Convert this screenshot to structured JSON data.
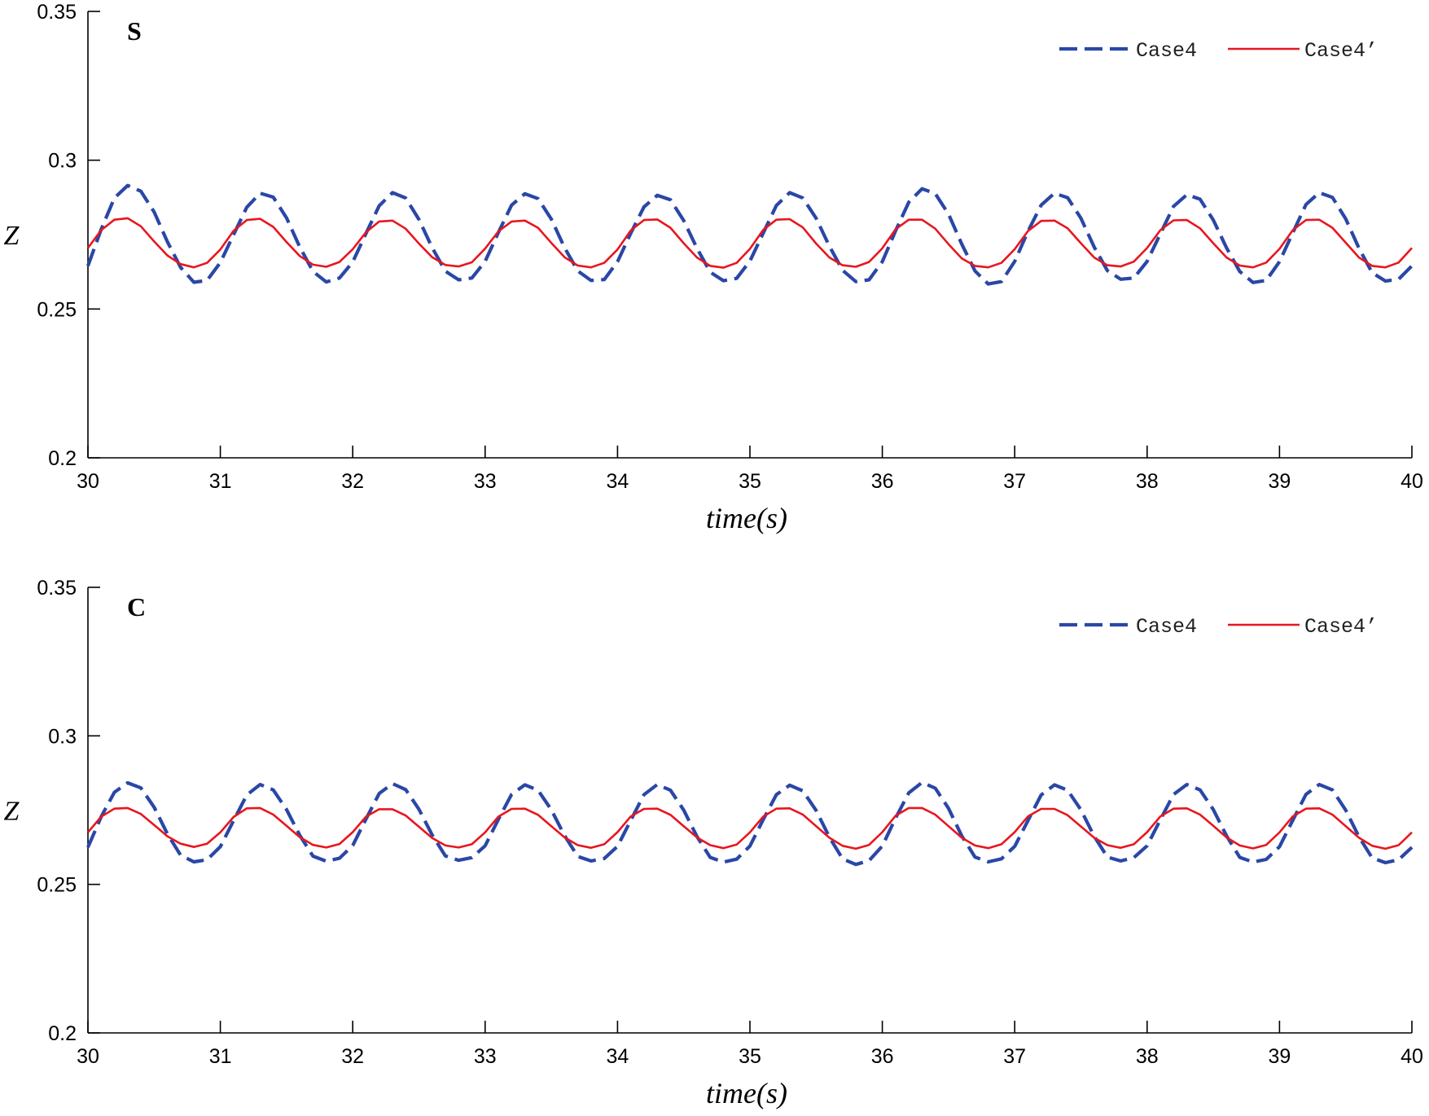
{
  "chart_data": [
    {
      "type": "line",
      "title": "S",
      "xlabel": "time(s)",
      "ylabel": "Z",
      "xlim": [
        30,
        40
      ],
      "ylim": [
        0.2,
        0.35
      ],
      "xticks": [
        30,
        31,
        32,
        33,
        34,
        35,
        36,
        37,
        38,
        39,
        40
      ],
      "yticks": [
        0.2,
        0.25,
        0.3,
        0.35
      ],
      "xtick_labels": [
        "30",
        "31",
        "32",
        "33",
        "34",
        "35",
        "36",
        "37",
        "38",
        "39",
        "40"
      ],
      "ytick_labels": [
        "0.2",
        "0.25",
        "0.3",
        "0.35"
      ],
      "grid": false,
      "legend_position": "top-right",
      "series": [
        {
          "name": "Case4",
          "color": "#2a47a6",
          "style": "dashed",
          "x": [
            30.0,
            30.1,
            30.2,
            30.3,
            30.4,
            30.5,
            30.6,
            30.7,
            30.8,
            30.9,
            31.0,
            31.1,
            31.2,
            31.3,
            31.4,
            31.5,
            31.6,
            31.7,
            31.8,
            31.9,
            32.0,
            32.1,
            32.2,
            32.3,
            32.4,
            32.5,
            32.6,
            32.7,
            32.8,
            32.9,
            33.0,
            33.1,
            33.2,
            33.3,
            33.4,
            33.5,
            33.6,
            33.7,
            33.8,
            33.9,
            34.0,
            34.1,
            34.2,
            34.3,
            34.4,
            34.5,
            34.6,
            34.7,
            34.8,
            34.9,
            35.0,
            35.1,
            35.2,
            35.3,
            35.4,
            35.5,
            35.6,
            35.7,
            35.8,
            35.9,
            36.0,
            36.1,
            36.2,
            36.3,
            36.4,
            36.5,
            36.6,
            36.7,
            36.8,
            36.9,
            37.0,
            37.1,
            37.2,
            37.3,
            37.4,
            37.5,
            37.6,
            37.7,
            37.8,
            37.9,
            38.0,
            38.1,
            38.2,
            38.3,
            38.4,
            38.5,
            38.6,
            38.7,
            38.8,
            38.9,
            39.0,
            39.1,
            39.2,
            39.3,
            39.4,
            39.5,
            39.6,
            39.7,
            39.8,
            39.9,
            40.0
          ],
          "y": [
            0.2645,
            0.2768,
            0.2873,
            0.2915,
            0.2896,
            0.2826,
            0.2726,
            0.264,
            0.259,
            0.2596,
            0.2656,
            0.275,
            0.2842,
            0.2889,
            0.2876,
            0.2806,
            0.2708,
            0.2626,
            0.2591,
            0.2604,
            0.2658,
            0.2754,
            0.2847,
            0.2891,
            0.2873,
            0.2801,
            0.2706,
            0.2627,
            0.2598,
            0.2604,
            0.266,
            0.2757,
            0.2849,
            0.2887,
            0.2871,
            0.2802,
            0.2706,
            0.2628,
            0.2596,
            0.2599,
            0.2659,
            0.2755,
            0.2843,
            0.2882,
            0.2867,
            0.2797,
            0.2704,
            0.2624,
            0.2595,
            0.2603,
            0.2661,
            0.2755,
            0.2848,
            0.2891,
            0.2873,
            0.2805,
            0.2711,
            0.263,
            0.2592,
            0.2598,
            0.2659,
            0.2763,
            0.2859,
            0.2904,
            0.2888,
            0.2819,
            0.2718,
            0.2628,
            0.2584,
            0.2592,
            0.266,
            0.2761,
            0.2849,
            0.2889,
            0.2874,
            0.2805,
            0.2708,
            0.2629,
            0.26,
            0.2604,
            0.266,
            0.2753,
            0.2845,
            0.2884,
            0.2869,
            0.2799,
            0.2705,
            0.2626,
            0.2589,
            0.2596,
            0.2659,
            0.2756,
            0.2851,
            0.2891,
            0.2875,
            0.2803,
            0.2704,
            0.2622,
            0.2594,
            0.26,
            0.2645
          ]
        },
        {
          "name": "Case4’",
          "color": "#e8161f",
          "style": "solid",
          "x": [
            30.0,
            30.1,
            30.2,
            30.3,
            30.4,
            30.5,
            30.6,
            30.7,
            30.8,
            30.9,
            31.0,
            31.1,
            31.2,
            31.3,
            31.4,
            31.5,
            31.6,
            31.7,
            31.8,
            31.9,
            32.0,
            32.1,
            32.2,
            32.3,
            32.4,
            32.5,
            32.6,
            32.7,
            32.8,
            32.9,
            33.0,
            33.1,
            33.2,
            33.3,
            33.4,
            33.5,
            33.6,
            33.7,
            33.8,
            33.9,
            34.0,
            34.1,
            34.2,
            34.3,
            34.4,
            34.5,
            34.6,
            34.7,
            34.8,
            34.9,
            35.0,
            35.1,
            35.2,
            35.3,
            35.4,
            35.5,
            35.6,
            35.7,
            35.8,
            35.9,
            36.0,
            36.1,
            36.2,
            36.3,
            36.4,
            36.5,
            36.6,
            36.7,
            36.8,
            36.9,
            37.0,
            37.1,
            37.2,
            37.3,
            37.4,
            37.5,
            37.6,
            37.7,
            37.8,
            37.9,
            38.0,
            38.1,
            38.2,
            38.3,
            38.4,
            38.5,
            38.6,
            38.7,
            38.8,
            38.9,
            39.0,
            39.1,
            39.2,
            39.3,
            39.4,
            39.5,
            39.6,
            39.7,
            39.8,
            39.9,
            40.0
          ],
          "y": [
            0.2705,
            0.2765,
            0.28,
            0.2805,
            0.2778,
            0.2727,
            0.268,
            0.2651,
            0.264,
            0.2655,
            0.27,
            0.2763,
            0.2799,
            0.2803,
            0.2776,
            0.2725,
            0.2678,
            0.2649,
            0.2642,
            0.2658,
            0.2701,
            0.2758,
            0.2794,
            0.2797,
            0.277,
            0.272,
            0.2674,
            0.2648,
            0.2643,
            0.2657,
            0.2703,
            0.2761,
            0.2794,
            0.2797,
            0.2773,
            0.2722,
            0.2674,
            0.2646,
            0.264,
            0.2655,
            0.27,
            0.2764,
            0.2799,
            0.2801,
            0.2773,
            0.2721,
            0.2673,
            0.2645,
            0.2639,
            0.2655,
            0.2702,
            0.2766,
            0.28,
            0.2802,
            0.2774,
            0.272,
            0.2673,
            0.2647,
            0.2642,
            0.2658,
            0.2704,
            0.2768,
            0.28,
            0.28,
            0.277,
            0.2718,
            0.267,
            0.2645,
            0.264,
            0.2655,
            0.2701,
            0.2762,
            0.2796,
            0.2797,
            0.2771,
            0.2721,
            0.2673,
            0.2647,
            0.2643,
            0.2659,
            0.2705,
            0.2765,
            0.2798,
            0.2799,
            0.2771,
            0.2721,
            0.2673,
            0.2646,
            0.264,
            0.2656,
            0.2702,
            0.2765,
            0.2799,
            0.28,
            0.2773,
            0.2723,
            0.2673,
            0.2645,
            0.264,
            0.2656,
            0.2705
          ]
        }
      ]
    },
    {
      "type": "line",
      "title": "C",
      "xlabel": "time(s)",
      "ylabel": "Z",
      "xlim": [
        30,
        40
      ],
      "ylim": [
        0.2,
        0.35
      ],
      "xticks": [
        30,
        31,
        32,
        33,
        34,
        35,
        36,
        37,
        38,
        39,
        40
      ],
      "yticks": [
        0.2,
        0.25,
        0.3,
        0.35
      ],
      "xtick_labels": [
        "30",
        "31",
        "32",
        "33",
        "34",
        "35",
        "36",
        "37",
        "38",
        "39",
        "40"
      ],
      "ytick_labels": [
        "0.2",
        "0.25",
        "0.3",
        "0.35"
      ],
      "grid": false,
      "legend_position": "top-right",
      "series": [
        {
          "name": "Case4",
          "color": "#2a47a6",
          "style": "dashed",
          "x": [
            30.0,
            30.1,
            30.2,
            30.3,
            30.4,
            30.5,
            30.6,
            30.7,
            30.8,
            30.9,
            31.0,
            31.1,
            31.2,
            31.3,
            31.4,
            31.5,
            31.6,
            31.7,
            31.8,
            31.9,
            32.0,
            32.1,
            32.2,
            32.3,
            32.4,
            32.5,
            32.6,
            32.7,
            32.8,
            32.9,
            33.0,
            33.1,
            33.2,
            33.3,
            33.4,
            33.5,
            33.6,
            33.7,
            33.8,
            33.9,
            34.0,
            34.1,
            34.2,
            34.3,
            34.4,
            34.5,
            34.6,
            34.7,
            34.8,
            34.9,
            35.0,
            35.1,
            35.2,
            35.3,
            35.4,
            35.5,
            35.6,
            35.7,
            35.8,
            35.9,
            36.0,
            36.1,
            36.2,
            36.3,
            36.4,
            36.5,
            36.6,
            36.7,
            36.8,
            36.9,
            37.0,
            37.1,
            37.2,
            37.3,
            37.4,
            37.5,
            37.6,
            37.7,
            37.8,
            37.9,
            38.0,
            38.1,
            38.2,
            38.3,
            38.4,
            38.5,
            38.6,
            38.7,
            38.8,
            38.9,
            39.0,
            39.1,
            39.2,
            39.3,
            39.4,
            39.5,
            39.6,
            39.7,
            39.8,
            39.9,
            40.0
          ],
          "y": [
            0.2625,
            0.2728,
            0.281,
            0.2842,
            0.2825,
            0.276,
            0.267,
            0.2598,
            0.2576,
            0.2583,
            0.2627,
            0.2715,
            0.2801,
            0.2836,
            0.2818,
            0.2752,
            0.2665,
            0.2595,
            0.2578,
            0.2588,
            0.2631,
            0.272,
            0.2806,
            0.2839,
            0.2819,
            0.2753,
            0.2666,
            0.2596,
            0.2581,
            0.259,
            0.263,
            0.2719,
            0.2803,
            0.2835,
            0.2817,
            0.2751,
            0.2664,
            0.2594,
            0.2579,
            0.2587,
            0.2628,
            0.2716,
            0.2802,
            0.2836,
            0.2817,
            0.275,
            0.2661,
            0.2591,
            0.2575,
            0.2585,
            0.2629,
            0.2718,
            0.2802,
            0.2834,
            0.2815,
            0.2749,
            0.2659,
            0.2586,
            0.2567,
            0.258,
            0.2629,
            0.2723,
            0.2808,
            0.2843,
            0.2824,
            0.2756,
            0.2663,
            0.2592,
            0.2576,
            0.2586,
            0.2628,
            0.2715,
            0.2801,
            0.2835,
            0.2817,
            0.2751,
            0.2662,
            0.2592,
            0.2579,
            0.259,
            0.263,
            0.2718,
            0.2803,
            0.2836,
            0.2818,
            0.2752,
            0.2663,
            0.2591,
            0.2575,
            0.2584,
            0.2627,
            0.2716,
            0.2803,
            0.2836,
            0.2818,
            0.275,
            0.266,
            0.2589,
            0.2573,
            0.2583,
            0.2625
          ]
        },
        {
          "name": "Case4’",
          "color": "#e8161f",
          "style": "solid",
          "x": [
            30.0,
            30.1,
            30.2,
            30.3,
            30.4,
            30.5,
            30.6,
            30.7,
            30.8,
            30.9,
            31.0,
            31.1,
            31.2,
            31.3,
            31.4,
            31.5,
            31.6,
            31.7,
            31.8,
            31.9,
            32.0,
            32.1,
            32.2,
            32.3,
            32.4,
            32.5,
            32.6,
            32.7,
            32.8,
            32.9,
            33.0,
            33.1,
            33.2,
            33.3,
            33.4,
            33.5,
            33.6,
            33.7,
            33.8,
            33.9,
            34.0,
            34.1,
            34.2,
            34.3,
            34.4,
            34.5,
            34.6,
            34.7,
            34.8,
            34.9,
            35.0,
            35.1,
            35.2,
            35.3,
            35.4,
            35.5,
            35.6,
            35.7,
            35.8,
            35.9,
            36.0,
            36.1,
            36.2,
            36.3,
            36.4,
            36.5,
            36.6,
            36.7,
            36.8,
            36.9,
            37.0,
            37.1,
            37.2,
            37.3,
            37.4,
            37.5,
            37.6,
            37.7,
            37.8,
            37.9,
            38.0,
            38.1,
            38.2,
            38.3,
            38.4,
            38.5,
            38.6,
            38.7,
            38.8,
            38.9,
            39.0,
            39.1,
            39.2,
            39.3,
            39.4,
            39.5,
            39.6,
            39.7,
            39.8,
            39.9,
            40.0
          ],
          "y": [
            0.2675,
            0.2728,
            0.2755,
            0.2757,
            0.2737,
            0.27,
            0.2662,
            0.2637,
            0.2626,
            0.2637,
            0.2675,
            0.2727,
            0.2756,
            0.2757,
            0.2735,
            0.2697,
            0.2659,
            0.2633,
            0.2624,
            0.2636,
            0.2676,
            0.2728,
            0.2753,
            0.2753,
            0.2732,
            0.2694,
            0.2656,
            0.2631,
            0.2624,
            0.2635,
            0.2675,
            0.2728,
            0.2754,
            0.2755,
            0.2734,
            0.2696,
            0.2658,
            0.2632,
            0.2623,
            0.2635,
            0.2676,
            0.2729,
            0.2754,
            0.2755,
            0.2734,
            0.2696,
            0.2658,
            0.2632,
            0.2622,
            0.2634,
            0.2675,
            0.2728,
            0.2755,
            0.2756,
            0.2735,
            0.2696,
            0.2657,
            0.263,
            0.262,
            0.2633,
            0.2676,
            0.2731,
            0.2757,
            0.2757,
            0.2735,
            0.2696,
            0.2657,
            0.2631,
            0.2622,
            0.2635,
            0.2676,
            0.2729,
            0.2754,
            0.2754,
            0.2733,
            0.2695,
            0.2657,
            0.2632,
            0.2623,
            0.2635,
            0.2676,
            0.2729,
            0.2755,
            0.2756,
            0.2735,
            0.2697,
            0.2658,
            0.2631,
            0.2621,
            0.2633,
            0.2675,
            0.2729,
            0.2755,
            0.2756,
            0.2735,
            0.2696,
            0.2657,
            0.263,
            0.262,
            0.2632,
            0.2675
          ]
        }
      ]
    }
  ]
}
